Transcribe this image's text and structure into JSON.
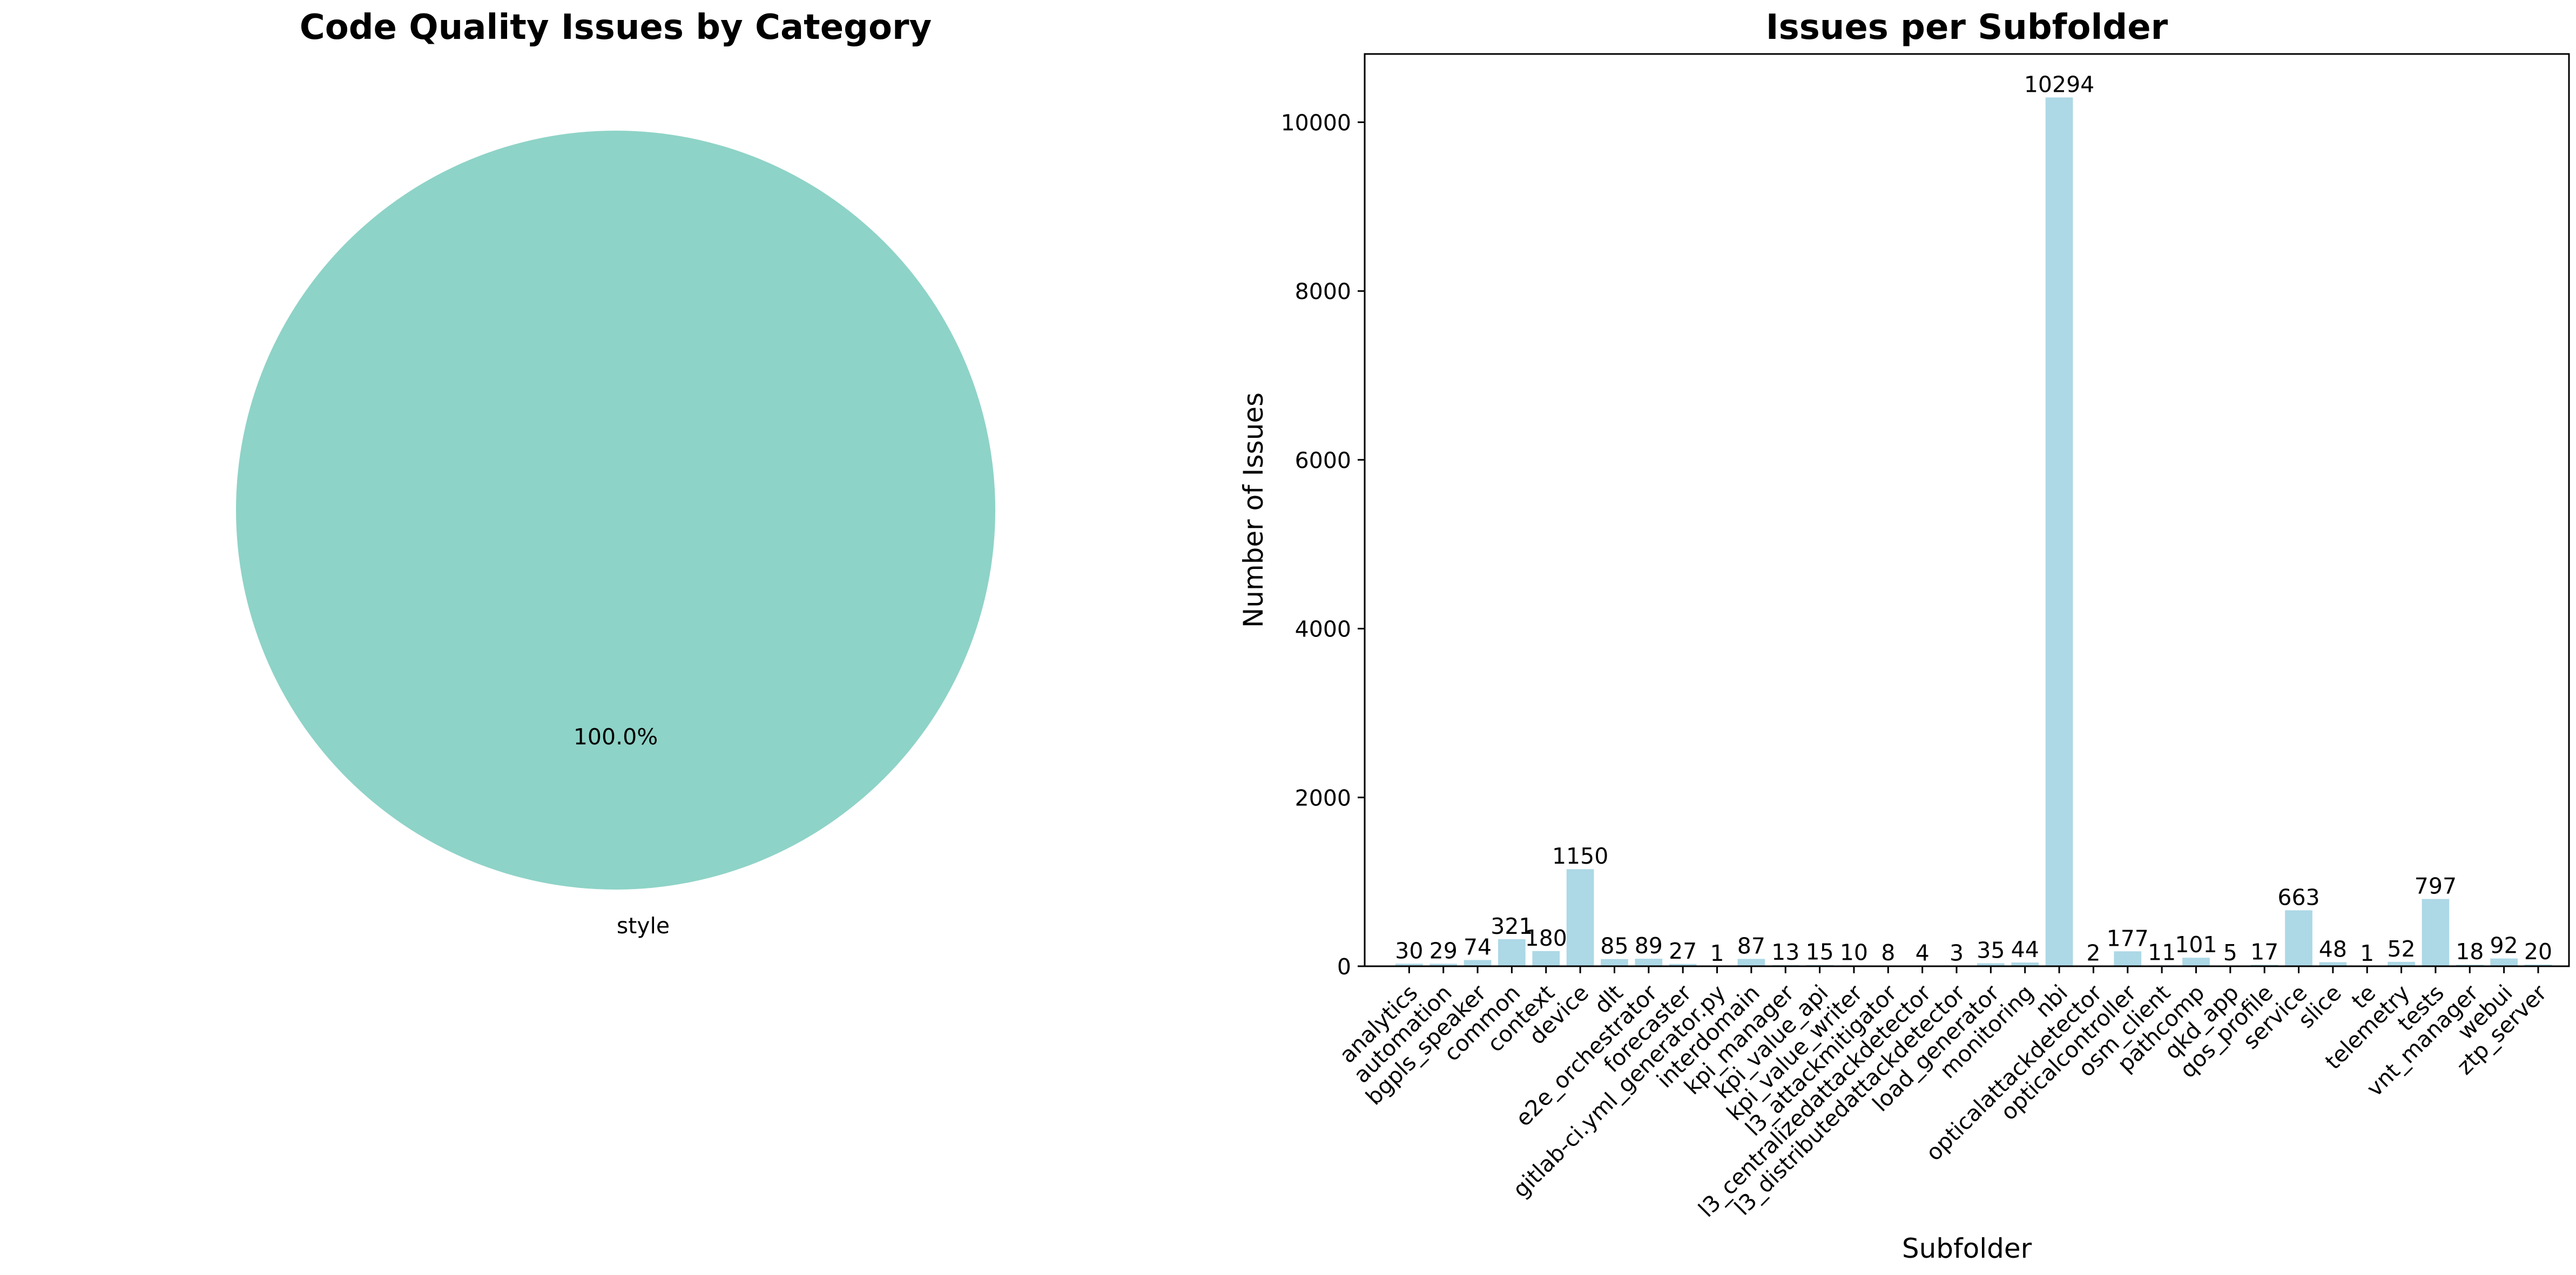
{
  "chart_data": [
    {
      "type": "pie",
      "title": "Code Quality Issues by Category",
      "labels": [
        "style"
      ],
      "values": [
        100
      ],
      "autopct": [
        "100.0%"
      ],
      "colors": [
        "#8ed3c7"
      ]
    },
    {
      "type": "bar",
      "title": "Issues per Subfolder",
      "xlabel": "Subfolder",
      "ylabel": "Number of Issues",
      "categories": [
        "analytics",
        "automation",
        "bgpls_speaker",
        "common",
        "context",
        "device",
        "dlt",
        "e2e_orchestrator",
        "forecaster",
        "gitlab-ci.yml_generator.py",
        "interdomain",
        "kpi_manager",
        "kpi_value_api",
        "kpi_value_writer",
        "l3_attackmitigator",
        "l3_centralizedattackdetector",
        "l3_distributedattackdetector",
        "load_generator",
        "monitoring",
        "nbi",
        "opticalattackdetector",
        "opticalcontroller",
        "osm_client",
        "pathcomp",
        "qkd_app",
        "qos_profile",
        "service",
        "slice",
        "te",
        "telemetry",
        "tests",
        "vnt_manager",
        "webui",
        "ztp_server"
      ],
      "values": [
        30,
        29,
        74,
        321,
        180,
        1150,
        85,
        89,
        27,
        1,
        87,
        13,
        15,
        10,
        8,
        4,
        3,
        35,
        44,
        10294,
        2,
        177,
        11,
        101,
        5,
        17,
        663,
        48,
        1,
        52,
        797,
        18,
        92,
        20
      ],
      "ylim": [
        0,
        10808.7
      ],
      "yticks": [
        0,
        2000,
        4000,
        6000,
        8000,
        10000
      ],
      "color": "#add8e6",
      "grid": false
    }
  ]
}
